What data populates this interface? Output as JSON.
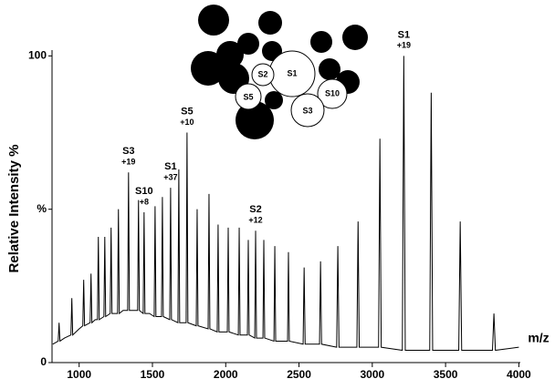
{
  "chart_data": {
    "type": "line",
    "ylabel": "Relative Intensity %",
    "xlabel": "m/z",
    "xlim": [
      815,
      4010
    ],
    "ylim": [
      0,
      101
    ],
    "xticks": [
      1000,
      1500,
      2000,
      2500,
      3000,
      3500,
      4000
    ],
    "yticks": [
      0,
      {
        "value": 50,
        "label": "%"
      },
      100
    ],
    "color": "#000000",
    "x": [
      820,
      857,
      863,
      869,
      900,
      944,
      950,
      956,
      1000,
      1025,
      1031,
      1037,
      1075,
      1081,
      1087,
      1110,
      1125,
      1131,
      1137,
      1169,
      1175,
      1181,
      1212,
      1218,
      1224,
      1262,
      1268,
      1274,
      1300,
      1331,
      1337,
      1343,
      1399,
      1405,
      1411,
      1437,
      1443,
      1449,
      1480,
      1512,
      1518,
      1524,
      1562,
      1568,
      1574,
      1618,
      1624,
      1630,
      1674,
      1680,
      1686,
      1730,
      1736,
      1742,
      1799,
      1805,
      1811,
      1880,
      1886,
      1892,
      1942,
      1948,
      1954,
      2011,
      2017,
      2023,
      2086,
      2092,
      2098,
      2148,
      2154,
      2160,
      2198,
      2204,
      2210,
      2254,
      2260,
      2266,
      2329,
      2335,
      2341,
      2422,
      2428,
      2434,
      2528,
      2535,
      2542,
      2640,
      2647,
      2654,
      2757,
      2765,
      2773,
      2895,
      2903,
      2911,
      3043,
      3052,
      3061,
      3205,
      3215,
      3225,
      3392,
      3402,
      3412,
      3590,
      3600,
      3610,
      3820,
      3830,
      3840,
      4000
    ],
    "values": [
      6,
      7,
      13,
      7,
      8,
      9,
      21,
      9,
      11,
      12,
      27,
      12,
      13,
      29,
      13,
      14,
      14,
      41,
      14,
      15,
      41,
      15,
      16,
      44,
      16,
      16,
      50,
      16,
      17,
      17,
      62,
      17,
      17,
      53,
      17,
      16,
      49,
      16,
      16,
      15,
      51,
      15,
      15,
      54,
      15,
      14,
      57,
      14,
      13,
      63,
      13,
      13,
      75,
      13,
      12,
      50,
      12,
      11,
      55,
      11,
      10,
      45,
      10,
      10,
      44,
      10,
      9,
      44,
      9,
      9,
      40,
      9,
      8,
      43,
      8,
      8,
      40,
      8,
      7,
      38,
      7,
      7,
      36,
      7,
      6,
      31,
      6,
      6,
      33,
      6,
      5,
      38,
      5,
      5,
      46,
      5,
      5,
      73,
      5,
      4,
      100,
      4,
      4,
      88,
      4,
      4,
      46,
      4,
      4,
      16,
      4,
      5
    ],
    "annotations": [
      {
        "text": "S3",
        "charge": "+19",
        "x": 1337
      },
      {
        "text": "S10",
        "charge": "+8",
        "x": 1443
      },
      {
        "text": "S1",
        "charge": "+37",
        "x": 1624
      },
      {
        "text": "S5",
        "charge": "+10",
        "x": 1736
      },
      {
        "text": "S2",
        "charge": "+12",
        "x": 2204
      },
      {
        "text": "S1",
        "charge": "+19",
        "x": 3215
      }
    ],
    "inset_labels": [
      "S1",
      "S2",
      "S5",
      "S10",
      "S3"
    ]
  }
}
